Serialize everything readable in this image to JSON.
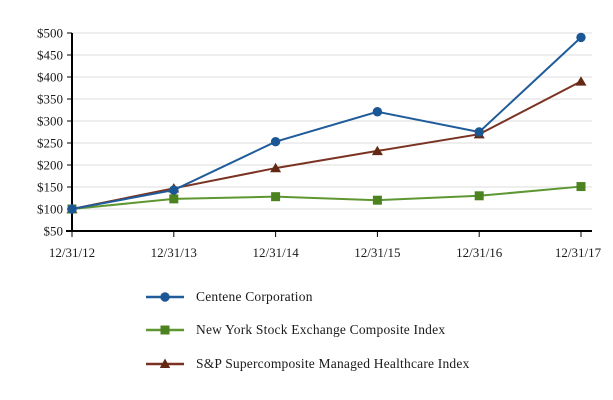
{
  "chart_data": {
    "type": "line",
    "title": "",
    "categories": [
      "12/31/12",
      "12/31/13",
      "12/31/14",
      "12/31/15",
      "12/31/16",
      "12/31/17"
    ],
    "series": [
      {
        "name": "Centene Corporation",
        "marker": "circle",
        "line_color": "#1F5C99",
        "marker_color": "#1B5695",
        "values": [
          100,
          143,
          253,
          321,
          275,
          490
        ]
      },
      {
        "name": "New York Stock Exchange Composite Index",
        "marker": "square",
        "line_color": "#5E9732",
        "marker_color": "#4C8220",
        "values": [
          100,
          123,
          128,
          120,
          130,
          151
        ]
      },
      {
        "name": "S&P Supercomposite Managed Healthcare Index",
        "marker": "triangle",
        "line_color": "#7A3322",
        "marker_color": "#632914",
        "values": [
          100,
          147,
          193,
          232,
          270,
          390
        ]
      }
    ],
    "x_axis": {
      "tick_labels": [
        "12/31/12",
        "12/31/13",
        "12/31/14",
        "12/31/15",
        "12/31/16",
        "12/31/17"
      ]
    },
    "y_axis": {
      "min": 50,
      "max": 500,
      "step": 50,
      "tick_prefix": "$",
      "tick_labels": [
        "$50",
        "$100",
        "$150",
        "$200",
        "$250",
        "$300",
        "$350",
        "$400",
        "$450",
        "$500"
      ]
    },
    "grid": true,
    "legend_position": "bottom-left",
    "colors": {
      "background": "#ffffff",
      "gridline": "#DDDDDD",
      "axis": "#000000",
      "text": "#1A1A1A"
    }
  }
}
